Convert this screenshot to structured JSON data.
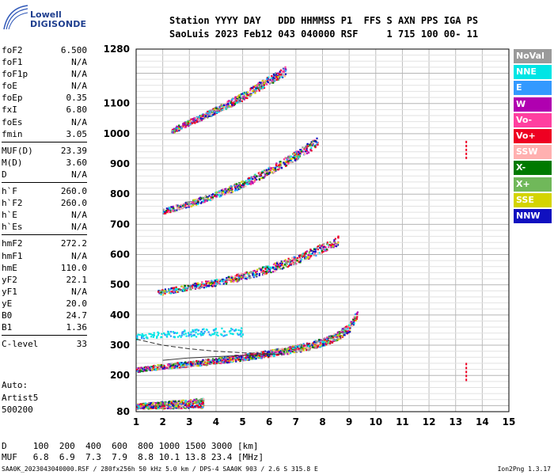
{
  "logo": {
    "line1": "Lowell",
    "line2": "DIGISONDE"
  },
  "header": {
    "line1": "Station YYYY DAY   DDD HHMMSS P1  FFS S AXN PPS IGA PS",
    "line2": "SaoLuis 2023 Feb12 043 040000 RSF     1 715 100 00- 11"
  },
  "params": [
    {
      "name": "foF2",
      "value": "6.500"
    },
    {
      "name": "foF1",
      "value": "N/A"
    },
    {
      "name": "foF1p",
      "value": "N/A"
    },
    {
      "name": "foE",
      "value": "N/A"
    },
    {
      "name": "foEp",
      "value": "0.35"
    },
    {
      "name": "fxI",
      "value": "6.80"
    },
    {
      "name": "foEs",
      "value": "N/A"
    },
    {
      "name": "fmin",
      "value": "3.05"
    },
    {
      "name": "MUF(D)",
      "value": "23.39"
    },
    {
      "name": "M(D)",
      "value": "3.60"
    },
    {
      "name": "D",
      "value": "N/A"
    },
    {
      "name": "h`F",
      "value": "260.0"
    },
    {
      "name": "h`F2",
      "value": "260.0"
    },
    {
      "name": "h`E",
      "value": "N/A"
    },
    {
      "name": "h`Es",
      "value": "N/A"
    },
    {
      "name": "hmF2",
      "value": "272.2"
    },
    {
      "name": "hmF1",
      "value": "N/A"
    },
    {
      "name": "hmE",
      "value": "110.0"
    },
    {
      "name": "yF2",
      "value": "22.1"
    },
    {
      "name": "yF1",
      "value": "N/A"
    },
    {
      "name": "yE",
      "value": "20.0"
    },
    {
      "name": "B0",
      "value": "24.7"
    },
    {
      "name": "B1",
      "value": "1.36"
    },
    {
      "name": "C-level",
      "value": "33"
    }
  ],
  "auto": {
    "line1": "Auto:",
    "line2": "Artist5",
    "line3": "500200"
  },
  "legend": [
    {
      "label": "NoVal",
      "color": "#9a9a9a"
    },
    {
      "label": "NNE",
      "color": "#00e5e5"
    },
    {
      "label": "E",
      "color": "#3399ff"
    },
    {
      "label": "W",
      "color": "#b000b0"
    },
    {
      "label": "Vo-",
      "color": "#ff3fa0"
    },
    {
      "label": "Vo+",
      "color": "#ee0022"
    },
    {
      "label": "SSW",
      "color": "#ffb0b0"
    },
    {
      "label": "X-",
      "color": "#007a00"
    },
    {
      "label": "X+",
      "color": "#70b85a"
    },
    {
      "label": "SSE",
      "color": "#d4d400"
    },
    {
      "label": "NNW",
      "color": "#1010c0"
    }
  ],
  "bottom": {
    "line1": "D     100  200  400  600  800 1000 1500 3000 [km]",
    "line2": "MUF   6.8  6.9  7.3  7.9  8.8 10.1 13.8 23.4 [MHz]"
  },
  "footer": {
    "left": "SAA0K_2023043040000.RSF / 280fx256h 50 kHz 5.0 km / DPS-4 SAA0K 903 / 2.6 S 315.8 E",
    "right": "Ion2Png 1.3.17"
  },
  "chart_data": {
    "type": "scatter",
    "xlim": [
      1,
      15
    ],
    "ylim": [
      80,
      1280
    ],
    "x_ticks": [
      "1",
      "2",
      "3",
      "4",
      "5",
      "6",
      "7",
      "8",
      "9",
      "10",
      "11",
      "12",
      "13",
      "14",
      "15"
    ],
    "y_ticks": [
      "80",
      "200",
      "300",
      "400",
      "500",
      "600",
      "700",
      "800",
      "900",
      "1000",
      "1100",
      "1280"
    ],
    "y_tick_values": [
      80,
      200,
      300,
      400,
      500,
      600,
      700,
      800,
      900,
      1000,
      1100,
      1280
    ],
    "grid": true,
    "traces": [
      {
        "name": "F-trace",
        "points": [
          [
            1.0,
            220
          ],
          [
            2.0,
            232
          ],
          [
            3.0,
            240
          ],
          [
            4.0,
            250
          ],
          [
            5.0,
            262
          ],
          [
            6.0,
            275
          ],
          [
            7.0,
            290
          ],
          [
            7.5,
            300
          ],
          [
            8.0,
            312
          ],
          [
            8.5,
            330
          ],
          [
            9.0,
            360
          ],
          [
            9.3,
            410
          ]
        ]
      },
      {
        "name": "lower-layer",
        "points": [
          [
            1.0,
            100
          ],
          [
            2.0,
            104
          ],
          [
            3.0,
            108
          ],
          [
            3.5,
            110
          ]
        ]
      },
      {
        "name": "2-hop",
        "points": [
          [
            1.8,
            475
          ],
          [
            3.0,
            495
          ],
          [
            4.0,
            510
          ],
          [
            5.0,
            530
          ],
          [
            6.0,
            555
          ],
          [
            7.0,
            585
          ],
          [
            8.0,
            625
          ],
          [
            8.6,
            650
          ]
        ]
      },
      {
        "name": "3-hop",
        "points": [
          [
            2.0,
            745
          ],
          [
            3.0,
            770
          ],
          [
            4.0,
            800
          ],
          [
            5.0,
            835
          ],
          [
            6.0,
            880
          ],
          [
            7.0,
            930
          ],
          [
            7.8,
            975
          ]
        ]
      },
      {
        "name": "4-hop",
        "points": [
          [
            2.3,
            1010
          ],
          [
            3.0,
            1040
          ],
          [
            4.0,
            1080
          ],
          [
            5.0,
            1125
          ],
          [
            6.0,
            1180
          ],
          [
            6.6,
            1210
          ]
        ]
      },
      {
        "name": "sporadic-upper",
        "points": [
          [
            1.0,
            330
          ],
          [
            2.0,
            338
          ],
          [
            3.0,
            342
          ],
          [
            4.0,
            345
          ],
          [
            5.0,
            347
          ]
        ]
      }
    ],
    "profile": {
      "points": [
        [
          1.0,
          320
        ],
        [
          2.0,
          300
        ],
        [
          3.0,
          288
        ],
        [
          4.0,
          280
        ],
        [
          5.0,
          275
        ],
        [
          6.0,
          272
        ],
        [
          6.5,
          270
        ]
      ]
    },
    "fit_curve": {
      "points": [
        [
          2.0,
          250
        ],
        [
          3.0,
          258
        ],
        [
          4.0,
          262
        ],
        [
          5.0,
          266
        ],
        [
          6.0,
          270
        ],
        [
          6.5,
          272
        ]
      ]
    },
    "markers": [
      {
        "x": 13.4,
        "y": 945
      },
      {
        "x": 13.4,
        "y": 210
      }
    ]
  }
}
